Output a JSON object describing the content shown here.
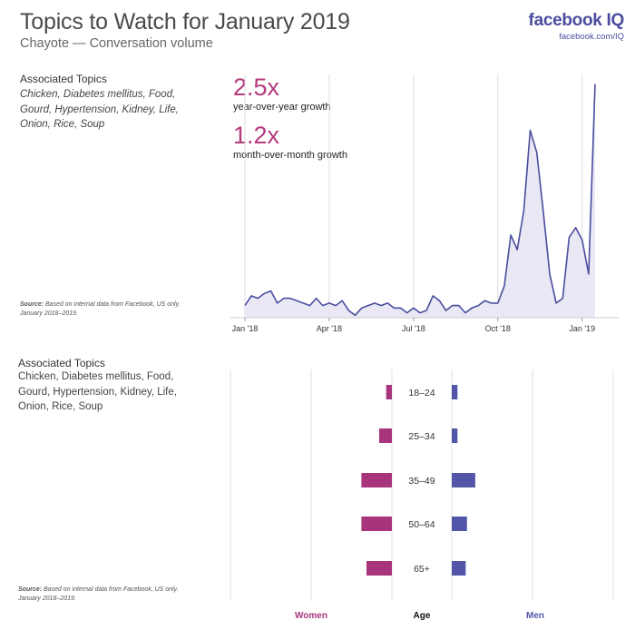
{
  "header": {
    "title": "Topics to Watch for January 2019",
    "subtitle": "Chayote — Conversation volume",
    "brand_name": "facebook IQ",
    "brand_url": "facebook.com/IQ"
  },
  "colors": {
    "line": "#4a4d9e",
    "area": "#e9e8f4",
    "women": "#a8347c",
    "men": "#5356a8",
    "growth": "#b43a7d"
  },
  "section1": {
    "topics_heading": "Associated Topics",
    "topics": "Chicken, Diabetes mellitus, Food, Gourd, Hypertension, Kidney, Life, Onion, Rice, Soup",
    "source_label": "Source:",
    "source_text": "Based on internal data from Facebook, US only. January 2018–2019.",
    "yoy_value": "2.5x",
    "yoy_label": "year-over-year growth",
    "mom_value": "1.2x",
    "mom_label": "month-over-month growth"
  },
  "section2": {
    "topics_heading": "Associated Topics",
    "topics": "Chicken, Diabetes mellitus, Food, Gourd, Hypertension, Kidney, Life, Onion, Rice, Soup",
    "source_label": "Source:",
    "source_text": "Based on internal data from Facebook, US only. January 2018–2019.",
    "legend_women": "Women",
    "legend_age": "Age",
    "legend_men": "Men"
  },
  "chart_data": [
    {
      "type": "area",
      "xlabel": "",
      "ylabel": "",
      "x_tick_labels": [
        "Jan '18",
        "Apr '18",
        "Jul '18",
        "Oct '18",
        "Jan '19"
      ],
      "x_tick_weeks": [
        1,
        14,
        27,
        40,
        53
      ],
      "ylim": [
        0,
        100
      ],
      "grid": "vertical",
      "series": [
        {
          "values": [
            5,
            9,
            8,
            10,
            11,
            6,
            8,
            8,
            7,
            6,
            5,
            8,
            5,
            6,
            5,
            7,
            3,
            1,
            4,
            5,
            6,
            5,
            6,
            4,
            4,
            2,
            4,
            2,
            3,
            9,
            7,
            3,
            5,
            5,
            2,
            4,
            5,
            7,
            6,
            6,
            13,
            34,
            28,
            44,
            77,
            68,
            44,
            18,
            6,
            8,
            33,
            37,
            32,
            18,
            96
          ]
        }
      ]
    },
    {
      "type": "bar",
      "orientation": "horizontal-diverging",
      "categories": [
        "18–24",
        "25–34",
        "35–49",
        "50–64",
        "65+"
      ],
      "series": [
        {
          "name": "Women",
          "values": [
            0.9,
            2.0,
            4.8,
            4.8,
            4.0
          ]
        },
        {
          "name": "Men",
          "values": [
            0.9,
            0.9,
            3.7,
            2.4,
            2.2
          ]
        }
      ],
      "xlim": [
        -8,
        8
      ],
      "grid": "vertical"
    }
  ]
}
